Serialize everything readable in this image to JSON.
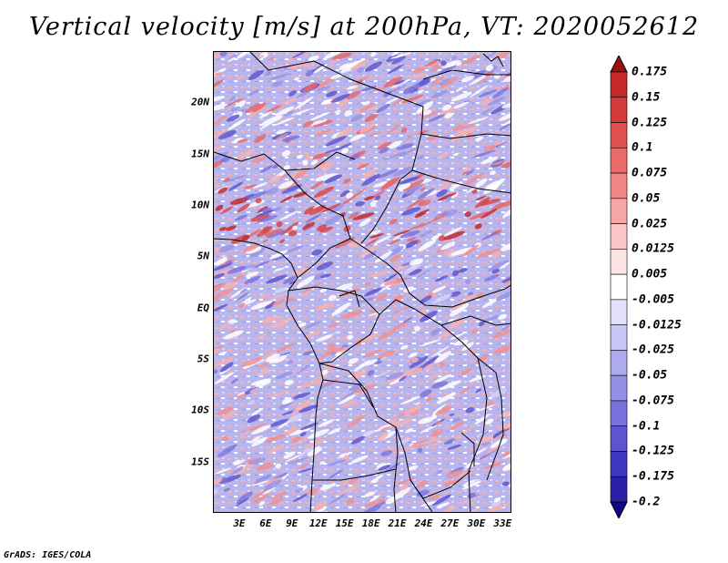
{
  "title": "Vertical velocity [m/s] at 200hPa, VT: 2020052612",
  "credit": "GrADS: IGES/COLA",
  "map": {
    "lat_range": [
      -20,
      25
    ],
    "lon_range": [
      0,
      34
    ],
    "lat_ticks": [
      {
        "value": 20,
        "label": "20N"
      },
      {
        "value": 15,
        "label": "15N"
      },
      {
        "value": 10,
        "label": "10N"
      },
      {
        "value": 5,
        "label": "5N"
      },
      {
        "value": 0,
        "label": "EQ"
      },
      {
        "value": -5,
        "label": "5S"
      },
      {
        "value": -10,
        "label": "10S"
      },
      {
        "value": -15,
        "label": "15S"
      }
    ],
    "lon_ticks": [
      {
        "value": 3,
        "label": "3E"
      },
      {
        "value": 6,
        "label": "6E"
      },
      {
        "value": 9,
        "label": "9E"
      },
      {
        "value": 12,
        "label": "12E"
      },
      {
        "value": 15,
        "label": "15E"
      },
      {
        "value": 18,
        "label": "18E"
      },
      {
        "value": 21,
        "label": "21E"
      },
      {
        "value": 24,
        "label": "24E"
      },
      {
        "value": 27,
        "label": "27E"
      },
      {
        "value": 30,
        "label": "30E"
      },
      {
        "value": 33,
        "label": "33E"
      }
    ]
  },
  "colorbar": {
    "levels": [
      "0.175",
      "0.15",
      "0.125",
      "0.1",
      "0.075",
      "0.05",
      "0.025",
      "0.0125",
      "0.005",
      "-0.005",
      "-0.0125",
      "-0.025",
      "-0.05",
      "-0.075",
      "-0.1",
      "-0.125",
      "-0.175",
      "-0.2"
    ],
    "colors": [
      "#b01818",
      "#c42828",
      "#d43a3a",
      "#e05050",
      "#e86a6a",
      "#f08888",
      "#f5a6a6",
      "#fac6c6",
      "#fde4e4",
      "#ffffff",
      "#e2e0fa",
      "#c8c6f4",
      "#aeaaee",
      "#9490e6",
      "#7872dc",
      "#5c54d0",
      "#4038c0",
      "#2a20a8",
      "#1a0c8c"
    ],
    "top_arrow_color": "#a01010",
    "bottom_arrow_color": "#14068a"
  }
}
